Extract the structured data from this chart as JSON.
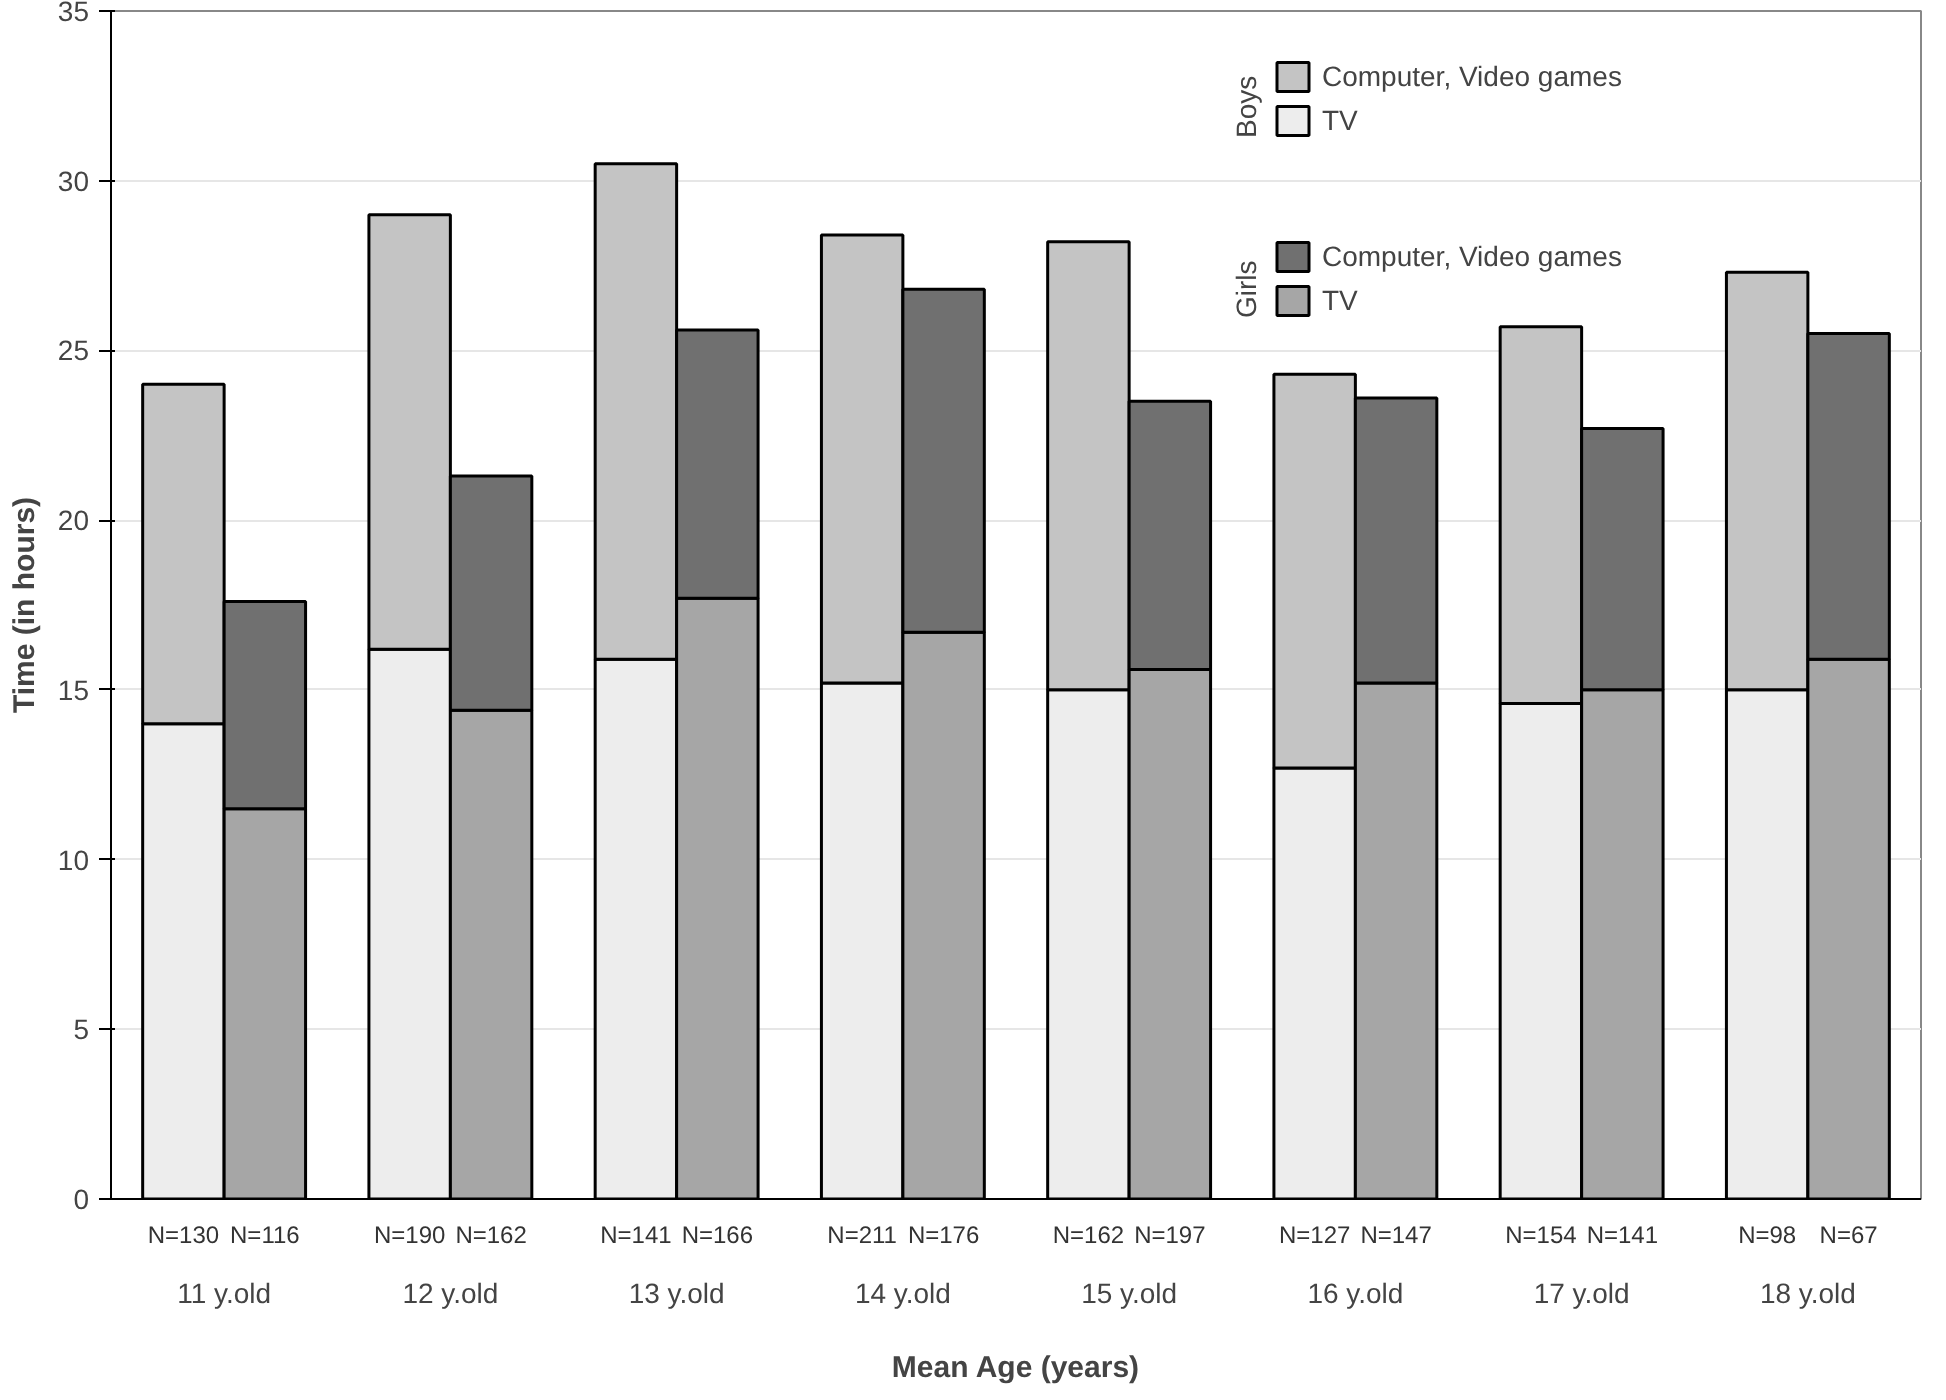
{
  "chart_data": {
    "type": "bar",
    "stacked": true,
    "xlabel": "Mean Age (years)",
    "ylabel": "Time (in hours)",
    "categories": [
      "N=130",
      "N=116",
      "N=190",
      "N=162",
      "N=141",
      "N=166",
      "N=211",
      "N=176",
      "N=162",
      "N=197",
      "N=127",
      "N=147",
      "N=154",
      "N=141",
      "N=98",
      "N=67"
    ],
    "series": [
      {
        "name": "TV",
        "color": "#ededed",
        "values": [
          14.0,
          null,
          16.2,
          null,
          15.9,
          null,
          15.2,
          null,
          15.0,
          null,
          12.7,
          null,
          14.6,
          null,
          15.0,
          null
        ]
      },
      {
        "name": "Computer, Video games",
        "color": "#c4c4c4",
        "values": [
          10.0,
          null,
          12.8,
          null,
          14.6,
          null,
          13.2,
          null,
          13.2,
          null,
          11.6,
          null,
          11.1,
          null,
          12.3,
          null
        ]
      },
      {
        "name": "TV",
        "color": "#a6a6a6",
        "values": [
          null,
          11.5,
          null,
          14.4,
          null,
          17.7,
          null,
          16.7,
          null,
          15.6,
          null,
          15.2,
          null,
          15.0,
          null,
          15.9
        ]
      },
      {
        "name": "Computer, Video games",
        "color": "#707070",
        "values": [
          null,
          6.1,
          null,
          6.9,
          null,
          7.9,
          null,
          10.1,
          null,
          7.9,
          null,
          8.4,
          null,
          7.7,
          null,
          9.6
        ]
      }
    ],
    "annotations": [
      "11 y.old",
      "12 y.old",
      "13 y.old",
      "14 y.old",
      "15 y.old",
      "16 y.old",
      "17 y.old",
      "18 y.old",
      "Boys",
      "Girls"
    ],
    "ylim": [
      0,
      35
    ],
    "yticks": [
      0,
      5,
      10,
      15,
      20,
      25,
      30,
      35
    ],
    "grid": "y",
    "legend": "top right"
  }
}
